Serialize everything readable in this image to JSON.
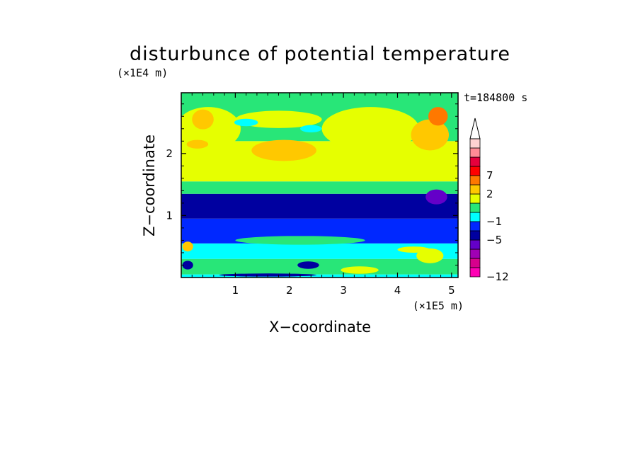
{
  "chart_data": {
    "type": "heatmap",
    "title": "disturbunce of potential temperature",
    "time_label": "t=184800 s",
    "xlabel": "X−coordinate",
    "ylabel": "Z−coordinate",
    "x_scale_label": "(×1E5 m)",
    "y_scale_label": "(×1E4 m)",
    "xlim": [
      0,
      5.12
    ],
    "ylim": [
      0,
      2.98
    ],
    "x_ticks": [
      1,
      2,
      3,
      4,
      5
    ],
    "x_tick_labels": [
      "1",
      "2",
      "3",
      "4",
      "5"
    ],
    "y_ticks": [
      1,
      2
    ],
    "y_tick_labels": [
      "1",
      "2"
    ],
    "legend_placement": "right",
    "colorbar": {
      "colors": [
        "#ff00b4",
        "#d7008c",
        "#a000b4",
        "#6400c8",
        "#0000a0",
        "#0028ff",
        "#00ffff",
        "#28e678",
        "#e6ff00",
        "#ffc800",
        "#ff7800",
        "#ff0000",
        "#e6003c",
        "#ff8c96",
        "#ffd2d2"
      ],
      "tick_labels": [
        "−12",
        "−5",
        "−1",
        "2",
        "7"
      ],
      "tick_bin_edges": [
        0,
        4,
        6,
        9,
        11
      ],
      "extend_max": true
    },
    "bands": [
      {
        "z": [
          0.0,
          0.05
        ],
        "value": -1,
        "color": "#00ffff"
      },
      {
        "z": [
          0.05,
          0.3
        ],
        "value": 0.5,
        "color": "#28e678"
      },
      {
        "z": [
          0.3,
          0.55
        ],
        "value": -0.5,
        "color": "#00ffff"
      },
      {
        "z": [
          0.55,
          0.95
        ],
        "value": -3,
        "color": "#0028ff"
      },
      {
        "z": [
          0.95,
          1.35
        ],
        "value": -4,
        "color": "#0000a0"
      },
      {
        "z": [
          1.35,
          1.55
        ],
        "value": 0.5,
        "color": "#28e678"
      },
      {
        "z": [
          1.55,
          2.2
        ],
        "value": 1.5,
        "color": "#e6ff00"
      },
      {
        "z": [
          2.2,
          2.98
        ],
        "value": 1,
        "color": "#28e678"
      }
    ],
    "blobs": [
      {
        "x": 1.9,
        "z": 2.05,
        "rx": 0.6,
        "rz": 0.17,
        "value": 2.5,
        "color": "#ffc800"
      },
      {
        "x": 3.5,
        "z": 2.4,
        "rx": 0.9,
        "rz": 0.35,
        "value": 1.5,
        "color": "#e6ff00"
      },
      {
        "x": 0.5,
        "z": 2.4,
        "rx": 0.6,
        "rz": 0.35,
        "value": 1.5,
        "color": "#e6ff00"
      },
      {
        "x": 0.4,
        "z": 2.55,
        "rx": 0.2,
        "rz": 0.16,
        "value": 2.5,
        "color": "#ffc800"
      },
      {
        "x": 1.8,
        "z": 2.55,
        "rx": 0.8,
        "rz": 0.14,
        "value": 1.5,
        "color": "#e6ff00"
      },
      {
        "x": 2.4,
        "z": 2.4,
        "rx": 0.2,
        "rz": 0.06,
        "value": -1,
        "color": "#00ffff"
      },
      {
        "x": 1.2,
        "z": 2.5,
        "rx": 0.22,
        "rz": 0.06,
        "value": -1,
        "color": "#00ffff"
      },
      {
        "x": 0.3,
        "z": 2.15,
        "rx": 0.2,
        "rz": 0.07,
        "value": 2.5,
        "color": "#ffc800"
      },
      {
        "x": 4.6,
        "z": 2.3,
        "rx": 0.35,
        "rz": 0.25,
        "value": 2.5,
        "color": "#ffc800"
      },
      {
        "x": 4.75,
        "z": 2.6,
        "rx": 0.18,
        "rz": 0.15,
        "value": 4,
        "color": "#ff7800"
      },
      {
        "x": 2.2,
        "z": 0.6,
        "rx": 1.2,
        "rz": 0.07,
        "value": 0.5,
        "color": "#28e678"
      },
      {
        "x": 4.3,
        "z": 0.45,
        "rx": 0.3,
        "rz": 0.05,
        "value": 1.5,
        "color": "#e6ff00"
      },
      {
        "x": 4.6,
        "z": 0.35,
        "rx": 0.25,
        "rz": 0.12,
        "value": 1.5,
        "color": "#e6ff00"
      },
      {
        "x": 3.3,
        "z": 0.12,
        "rx": 0.35,
        "rz": 0.06,
        "value": 1.5,
        "color": "#e6ff00"
      },
      {
        "x": 1.6,
        "z": 0.04,
        "rx": 0.9,
        "rz": 0.025,
        "value": -4,
        "color": "#0000a0"
      },
      {
        "x": 2.35,
        "z": 0.2,
        "rx": 0.2,
        "rz": 0.06,
        "value": -4,
        "color": "#0000a0"
      },
      {
        "x": 4.72,
        "z": 1.3,
        "rx": 0.2,
        "rz": 0.12,
        "value": -7,
        "color": "#6400c8"
      },
      {
        "x": 0.12,
        "z": 0.5,
        "rx": 0.1,
        "rz": 0.08,
        "value": 2,
        "color": "#ffc800"
      },
      {
        "x": 0.12,
        "z": 0.2,
        "rx": 0.1,
        "rz": 0.07,
        "value": -4,
        "color": "#0000a0"
      }
    ]
  }
}
